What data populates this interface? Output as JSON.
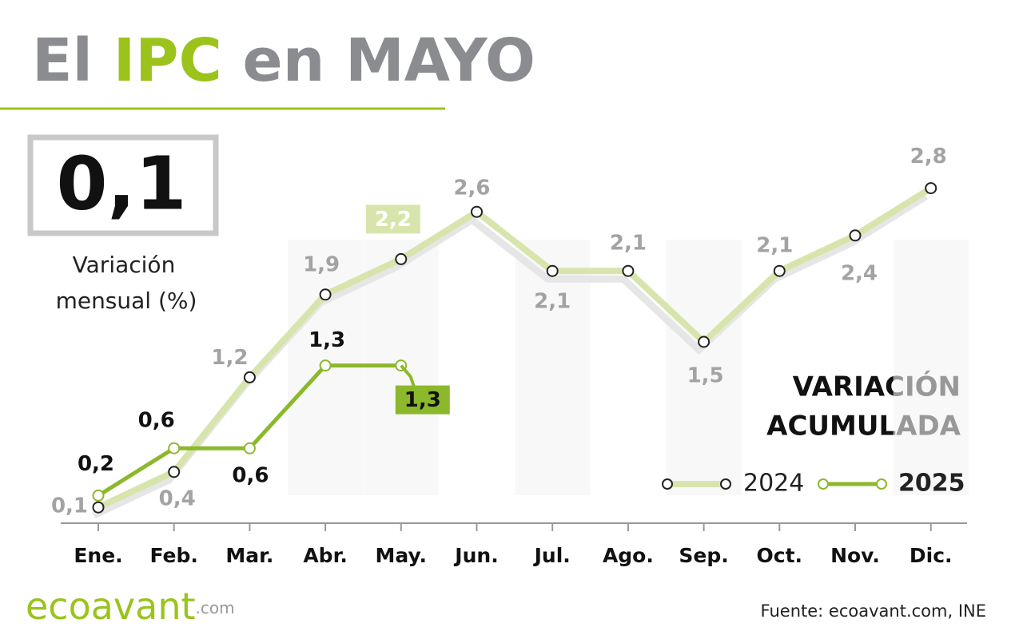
{
  "chart_data": {
    "type": "line",
    "title_parts": [
      "El",
      "IPC",
      "en MAYO"
    ],
    "headline_value": "0,1",
    "headline_caption": [
      "Variación",
      "mensual (%)"
    ],
    "subtitle": [
      "VARIACIÓN",
      "ACUMULADA"
    ],
    "source": "Fuente: ecoavant.com, INE",
    "brand": [
      "ecoavant",
      ".com"
    ],
    "categories": [
      "Ene.",
      "Feb.",
      "Mar.",
      "Abr.",
      "May.",
      "Jun.",
      "Jul.",
      "Ago.",
      "Sep.",
      "Oct.",
      "Nov.",
      "Dic."
    ],
    "ylim": [
      0,
      3
    ],
    "series": [
      {
        "name": "2024",
        "color": "#d7e5ad",
        "values": [
          0.1,
          0.4,
          1.2,
          1.9,
          2.2,
          2.6,
          2.1,
          2.1,
          1.5,
          2.1,
          2.4,
          2.8
        ],
        "value_labels": [
          "0,1",
          "0,4",
          "1,2",
          "1,9",
          "2,2",
          "2,6",
          "2,1",
          "2,1",
          "1,5",
          "2,1",
          "2,4",
          "2,8"
        ]
      },
      {
        "name": "2025",
        "color": "#8cb82b",
        "values": [
          0.2,
          0.6,
          0.6,
          1.3,
          1.3,
          null,
          null,
          null,
          null,
          null,
          null,
          null
        ],
        "value_labels": [
          "0,2",
          "0,6",
          "0,6",
          "1,3",
          "1,3",
          null,
          null,
          null,
          null,
          null,
          null,
          null
        ]
      }
    ]
  }
}
